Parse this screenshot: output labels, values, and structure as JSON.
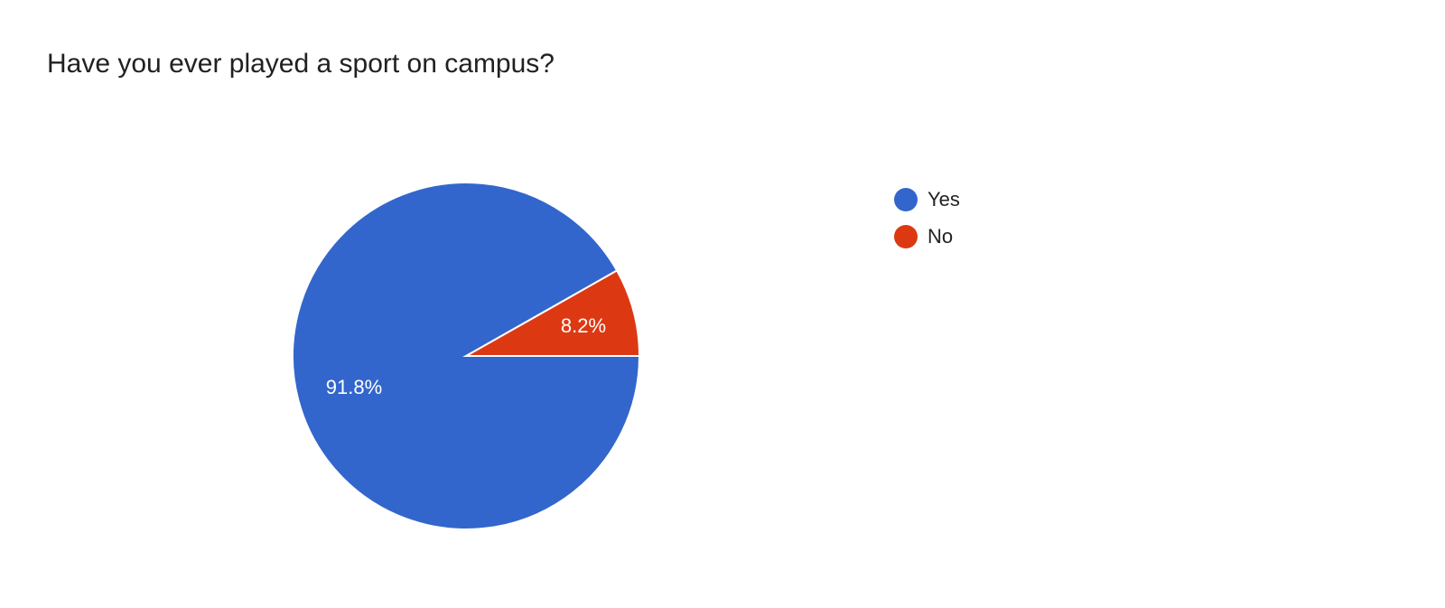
{
  "chart_data": {
    "type": "pie",
    "title": "Have you ever played a sport on campus?",
    "categories": [
      "Yes",
      "No"
    ],
    "values": [
      91.8,
      8.2
    ],
    "data_labels": [
      "91.8%",
      "8.2%"
    ],
    "colors": [
      "#3366cc",
      "#dc3912"
    ],
    "legend_position": "right"
  }
}
